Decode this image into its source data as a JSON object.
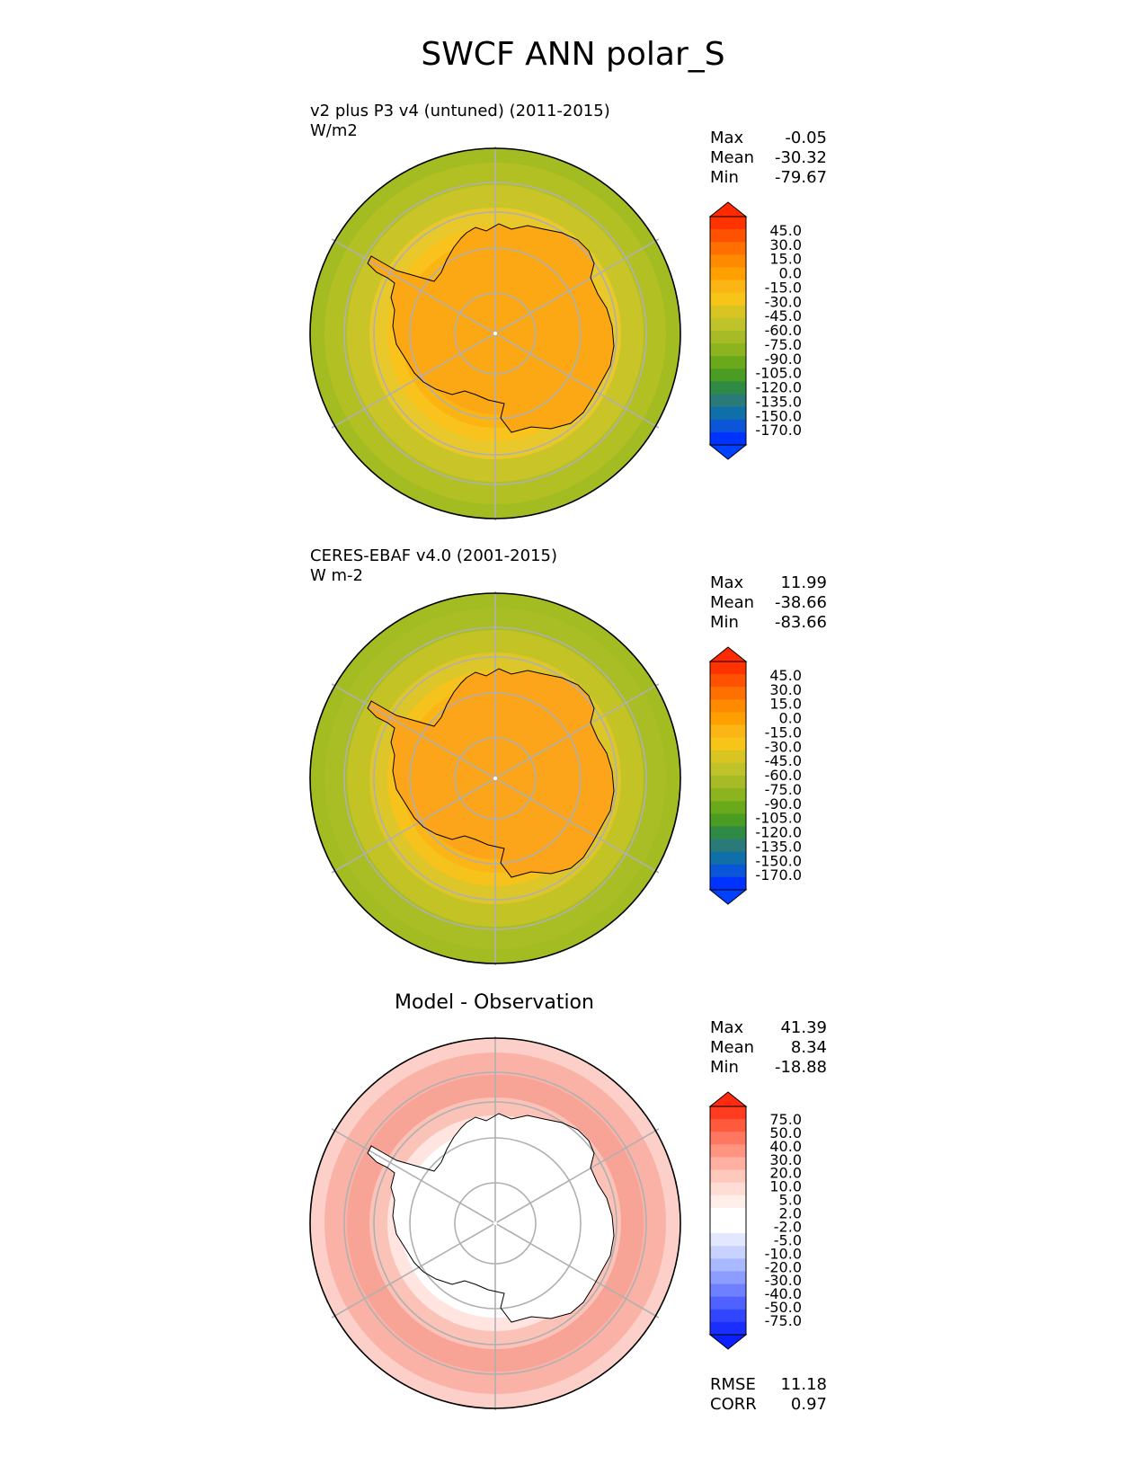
{
  "figure_title": "SWCF ANN polar_S",
  "panels": [
    {
      "title": "v2 plus P3 v4 (untuned) (2011-2015)",
      "units": "W/m2",
      "stats": {
        "max_label": "Max",
        "max": "-0.05",
        "mean_label": "Mean",
        "mean": "-30.32",
        "min_label": "Min",
        "min": "-79.67"
      },
      "colorbar": {
        "labels": [
          "45.0",
          "30.0",
          "15.0",
          "0.0",
          "-15.0",
          "-30.0",
          "-45.0",
          "-60.0",
          "-75.0",
          "-90.0",
          "-105.0",
          "-120.0",
          "-135.0",
          "-150.0",
          "-170.0"
        ],
        "colors": [
          "#ff3300",
          "#ff5200",
          "#ff7000",
          "#ff8a00",
          "#ffa000",
          "#fbb616",
          "#f7c418",
          "#d8c522",
          "#c0c22a",
          "#a6bb25",
          "#8bb41f",
          "#6aaa1a",
          "#4a9c22",
          "#2f8a45",
          "#2a7a7a",
          "#0f6fa8",
          "#0a55d8",
          "#0033ff"
        ],
        "top_color": "#ff2a00",
        "bottom_color": "#0040ff"
      },
      "rings": [
        "#a3bc22",
        "#b2c024",
        "#c9c528",
        "#e8c82a",
        "#f9c21d",
        "#fcb413",
        "#fca714"
      ],
      "antarctica_color": "#fca714"
    },
    {
      "title": "CERES-EBAF v4.0 (2001-2015)",
      "units": "W m-2",
      "stats": {
        "max_label": "Max",
        "max": "11.99",
        "mean_label": "Mean",
        "mean": "-38.66",
        "min_label": "Min",
        "min": "-83.66"
      },
      "colorbar": {
        "labels": [
          "45.0",
          "30.0",
          "15.0",
          "0.0",
          "-15.0",
          "-30.0",
          "-45.0",
          "-60.0",
          "-75.0",
          "-90.0",
          "-105.0",
          "-120.0",
          "-135.0",
          "-150.0",
          "-170.0"
        ],
        "colors": [
          "#ff3300",
          "#ff5200",
          "#ff7000",
          "#ff8a00",
          "#ffa000",
          "#fbb616",
          "#f7c418",
          "#d8c522",
          "#c0c22a",
          "#a6bb25",
          "#8bb41f",
          "#6aaa1a",
          "#4a9c22",
          "#2f8a45",
          "#2a7a7a",
          "#0f6fa8",
          "#0a55d8",
          "#0033ff"
        ],
        "top_color": "#ff2a00",
        "bottom_color": "#0040ff"
      },
      "rings": [
        "#a3bc22",
        "#a9bd24",
        "#c3c326",
        "#ddc62a",
        "#f6c21c",
        "#fcb516",
        "#fca41a"
      ],
      "antarctica_color": "#fca41a"
    },
    {
      "title": "Model - Observation",
      "units": "",
      "stats": {
        "max_label": "Max",
        "max": "41.39",
        "mean_label": "Mean",
        "mean": "8.34",
        "min_label": "Min",
        "min": "-18.88"
      },
      "colorbar": {
        "labels": [
          "75.0",
          "50.0",
          "40.0",
          "30.0",
          "20.0",
          "10.0",
          "5.0",
          "2.0",
          "-2.0",
          "-5.0",
          "-10.0",
          "-20.0",
          "-30.0",
          "-40.0",
          "-50.0",
          "-75.0"
        ],
        "colors": [
          "#ff3b20",
          "#ff5a3c",
          "#ff7760",
          "#ff9480",
          "#ffb0a0",
          "#ffc8bc",
          "#ffdcd4",
          "#ffeeea",
          "#ffffff",
          "#ffffff",
          "#e2e8ff",
          "#c8d2ff",
          "#aab8ff",
          "#8c9cff",
          "#6e80ff",
          "#4f62ff",
          "#3046ff",
          "#1a2fff"
        ],
        "top_color": "#ff2a10",
        "bottom_color": "#0a20ff"
      },
      "rings": [
        "#fcd0c8",
        "#fbb2a6",
        "#f7a396",
        "#fbc2b8",
        "#ffe4df",
        "#ffffff",
        "#ffffff"
      ],
      "antarctica_color": "#ffffff",
      "footer": {
        "rmse_label": "RMSE",
        "rmse": "11.18",
        "corr_label": "CORR",
        "corr": "0.97"
      }
    }
  ]
}
